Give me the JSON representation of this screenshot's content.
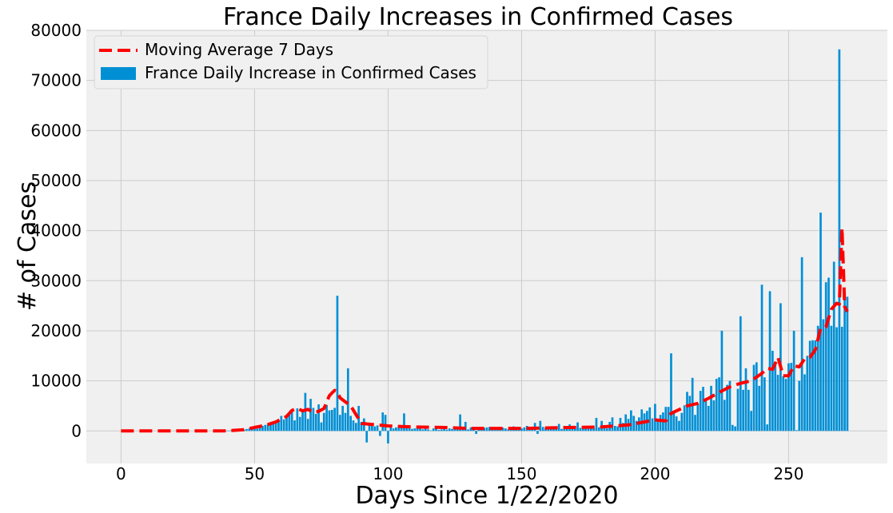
{
  "chart_data": {
    "type": "bar",
    "title": "France Daily Increases in Confirmed Cases",
    "xlabel": "Days Since 1/22/2020",
    "ylabel": "# of Cases",
    "xlim": [
      -13,
      287
    ],
    "ylim": [
      -6500,
      80000
    ],
    "xticks": [
      0,
      50,
      100,
      150,
      200,
      250
    ],
    "yticks": [
      0,
      10000,
      20000,
      30000,
      40000,
      50000,
      60000,
      70000,
      80000
    ],
    "grid": true,
    "legend_position": "top-left",
    "colors": {
      "background": "#f0f0f0",
      "grid": "#cbcbcb",
      "bars": "#008fd5",
      "moving_average": "#ff0000"
    },
    "series": [
      {
        "name": "France Daily Increase in Confirmed Cases",
        "type": "bar",
        "x": [
          0,
          1,
          2,
          3,
          4,
          5,
          6,
          7,
          8,
          9,
          10,
          11,
          12,
          13,
          14,
          15,
          16,
          17,
          18,
          19,
          20,
          21,
          22,
          23,
          24,
          25,
          26,
          27,
          28,
          29,
          30,
          31,
          32,
          33,
          34,
          35,
          36,
          37,
          38,
          39,
          40,
          41,
          42,
          43,
          44,
          45,
          46,
          47,
          48,
          49,
          50,
          51,
          52,
          53,
          54,
          55,
          56,
          57,
          58,
          59,
          60,
          61,
          62,
          63,
          64,
          65,
          66,
          67,
          68,
          69,
          70,
          71,
          72,
          73,
          74,
          75,
          76,
          77,
          78,
          79,
          80,
          81,
          82,
          83,
          84,
          85,
          86,
          87,
          88,
          89,
          90,
          91,
          92,
          93,
          94,
          95,
          96,
          97,
          98,
          99,
          100,
          101,
          102,
          103,
          104,
          105,
          106,
          107,
          108,
          109,
          110,
          111,
          112,
          113,
          114,
          115,
          116,
          117,
          118,
          119,
          120,
          121,
          122,
          123,
          124,
          125,
          126,
          127,
          128,
          129,
          130,
          131,
          132,
          133,
          134,
          135,
          136,
          137,
          138,
          139,
          140,
          141,
          142,
          143,
          144,
          145,
          146,
          147,
          148,
          149,
          150,
          151,
          152,
          153,
          154,
          155,
          156,
          157,
          158,
          159,
          160,
          161,
          162,
          163,
          164,
          165,
          166,
          167,
          168,
          169,
          170,
          171,
          172,
          173,
          174,
          175,
          176,
          177,
          178,
          179,
          180,
          181,
          182,
          183,
          184,
          185,
          186,
          187,
          188,
          189,
          190,
          191,
          192,
          193,
          194,
          195,
          196,
          197,
          198,
          199,
          200,
          201,
          202,
          203,
          204,
          205,
          206,
          207,
          208,
          209,
          210,
          211,
          212,
          213,
          214,
          215,
          216,
          217,
          218,
          219,
          220,
          221,
          222,
          223,
          224,
          225,
          226,
          227,
          228,
          229,
          230,
          231,
          232,
          233,
          234,
          235,
          236,
          237,
          238,
          239,
          240,
          241,
          242,
          243,
          244,
          245,
          246,
          247,
          248,
          249,
          250,
          251,
          252,
          253,
          254,
          255,
          256,
          257,
          258,
          259,
          260,
          261,
          262,
          263,
          264,
          265,
          266,
          267,
          268,
          269,
          270,
          271,
          272
        ],
        "values": [
          0,
          0,
          2,
          1,
          0,
          0,
          0,
          0,
          0,
          0,
          0,
          0,
          0,
          0,
          0,
          0,
          0,
          0,
          0,
          0,
          0,
          0,
          0,
          0,
          0,
          0,
          0,
          0,
          0,
          0,
          0,
          0,
          0,
          0,
          0,
          2,
          12,
          20,
          25,
          43,
          70,
          80,
          100,
          110,
          190,
          290,
          290,
          370,
          480,
          590,
          580,
          430,
          790,
          1000,
          1200,
          1300,
          1400,
          1600,
          1800,
          1800,
          3000,
          2300,
          3100,
          3700,
          4000,
          2100,
          4500,
          2800,
          3800,
          7600,
          2400,
          6400,
          4600,
          3400,
          5300,
          1700,
          3600,
          5200,
          4100,
          4200,
          4600,
          27000,
          3200,
          5000,
          3600,
          12500,
          3000,
          2100,
          1600,
          5000,
          1800,
          2500,
          -2300,
          1600,
          1200,
          900,
          1100,
          -1000,
          3700,
          3200,
          -2500,
          1200,
          500,
          700,
          900,
          600,
          3500,
          1100,
          700,
          400,
          500,
          600,
          800,
          300,
          450,
          300,
          100,
          500,
          900,
          200,
          300,
          1000,
          250,
          500,
          400,
          300,
          800,
          3300,
          400,
          1800,
          300,
          700,
          500,
          -600,
          450,
          400,
          600,
          700,
          800,
          300,
          200,
          550,
          450,
          650,
          500,
          300,
          700,
          900,
          600,
          700,
          500,
          700,
          1000,
          600,
          500,
          1600,
          -600,
          2000,
          800,
          500,
          900,
          700,
          600,
          500,
          1400,
          400,
          1000,
          700,
          1300,
          500,
          900,
          1700,
          600,
          1000,
          900,
          800,
          700,
          500,
          2600,
          700,
          2000,
          900,
          500,
          1800,
          2700,
          1000,
          900,
          2600,
          1600,
          3300,
          2400,
          4100,
          3000,
          2000,
          2700,
          4300,
          3500,
          4000,
          4700,
          2500,
          5400,
          2300,
          3200,
          3700,
          4800,
          4800,
          15500,
          3600,
          2900,
          2000,
          3600,
          5100,
          7800,
          7000,
          10600,
          3200,
          5400,
          8000,
          8800,
          6000,
          5000,
          9000,
          6100,
          10400,
          10700,
          20000,
          6200,
          9200,
          10000,
          1200,
          900,
          8400,
          22900,
          8200,
          12500,
          8200,
          4000,
          13200,
          13700,
          9000,
          29200,
          10700,
          1300,
          27900,
          16000,
          13200,
          11200,
          25500,
          10900,
          10400,
          13500,
          13600,
          20000,
          150,
          10000,
          34700,
          11300,
          15000,
          18000,
          18100,
          18100,
          21000,
          43600,
          22300,
          29700,
          30600,
          21000,
          33800,
          20700,
          76200,
          20800,
          27000,
          26800
        ]
      },
      {
        "name": "Moving Average 7 Days",
        "type": "line",
        "x": [
          0,
          10,
          20,
          30,
          38,
          42,
          46,
          50,
          54,
          58,
          62,
          64,
          66,
          68,
          70,
          72,
          74,
          76,
          78,
          79,
          80,
          81,
          82,
          86,
          90,
          96,
          100,
          104,
          110,
          120,
          130,
          140,
          150,
          160,
          170,
          180,
          190,
          200,
          204,
          206,
          208,
          212,
          216,
          220,
          224,
          228,
          232,
          236,
          240,
          242,
          244,
          246,
          248,
          250,
          252,
          254,
          256,
          258,
          260,
          262,
          264,
          266,
          268,
          269,
          270,
          271,
          272
        ],
        "values": [
          0,
          0,
          0,
          0,
          0,
          100,
          250,
          700,
          1100,
          1800,
          2900,
          4100,
          4500,
          4000,
          4300,
          3700,
          3900,
          4500,
          7000,
          7600,
          8100,
          7900,
          6600,
          5000,
          1500,
          1200,
          1000,
          900,
          800,
          700,
          500,
          500,
          500,
          600,
          700,
          800,
          1200,
          2200,
          2000,
          3500,
          4000,
          5000,
          5500,
          6500,
          7700,
          8800,
          9500,
          10000,
          11500,
          12500,
          12300,
          14700,
          11000,
          11000,
          13000,
          12800,
          14400,
          14700,
          16200,
          20500,
          20800,
          24300,
          25500,
          25300,
          40500,
          24800,
          23800
        ]
      }
    ]
  }
}
